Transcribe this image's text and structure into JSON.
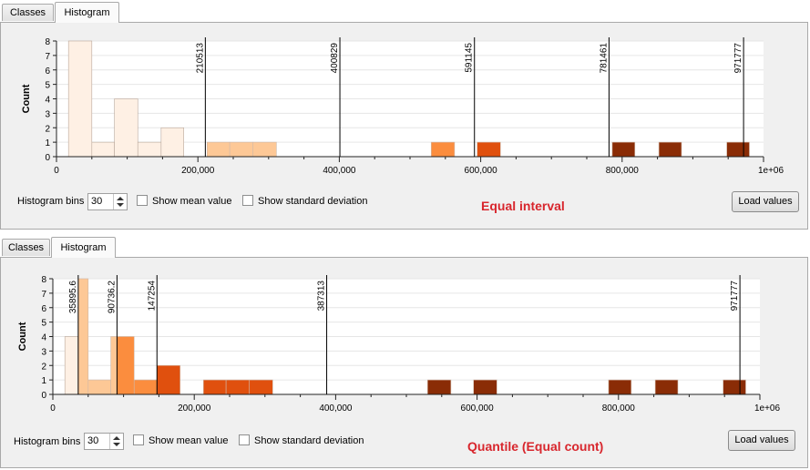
{
  "tabs": {
    "classes": "Classes",
    "histogram": "Histogram"
  },
  "controls": {
    "bins_label": "Histogram bins",
    "bins_value": "30",
    "show_mean": "Show mean value",
    "show_std": "Show standard deviation",
    "load_values": "Load values"
  },
  "colors": {
    "class1": "#fef0e4",
    "class2": "#fdc896",
    "class3": "#fb8d3e",
    "class4": "#e0500e",
    "class5": "#8a2c06"
  },
  "chart_data": [
    {
      "type": "bar",
      "method_label": "Equal interval",
      "xlabel": "",
      "ylabel": "Count",
      "xlim": [
        0,
        1000000
      ],
      "ylim": [
        0,
        8
      ],
      "x_ticks": [
        "0",
        "200,000",
        "400,000",
        "600,000",
        "800,000",
        "1e+06"
      ],
      "y_ticks": [
        "0",
        "1",
        "2",
        "3",
        "4",
        "5",
        "6",
        "7",
        "8"
      ],
      "breaks": [
        "210513",
        "400829",
        "591145",
        "781461",
        "971777"
      ],
      "break_values": [
        210513,
        400829,
        591145,
        781461,
        971777
      ],
      "bins": [
        {
          "x0": 17000,
          "x1": 50000,
          "count": 8,
          "class": 1
        },
        {
          "x0": 50000,
          "x1": 82000,
          "count": 1,
          "class": 1
        },
        {
          "x0": 82000,
          "x1": 115000,
          "count": 4,
          "class": 1
        },
        {
          "x0": 115000,
          "x1": 148000,
          "count": 1,
          "class": 1
        },
        {
          "x0": 148000,
          "x1": 180000,
          "count": 2,
          "class": 1
        },
        {
          "x0": 213000,
          "x1": 245000,
          "count": 1,
          "class": 2
        },
        {
          "x0": 245000,
          "x1": 278000,
          "count": 1,
          "class": 2
        },
        {
          "x0": 278000,
          "x1": 311000,
          "count": 1,
          "class": 2
        },
        {
          "x0": 530000,
          "x1": 563000,
          "count": 1,
          "class": 3
        },
        {
          "x0": 595000,
          "x1": 628000,
          "count": 1,
          "class": 4
        },
        {
          "x0": 786000,
          "x1": 818000,
          "count": 1,
          "class": 5
        },
        {
          "x0": 852000,
          "x1": 884000,
          "count": 1,
          "class": 5
        },
        {
          "x0": 948000,
          "x1": 980000,
          "count": 1,
          "class": 5
        }
      ]
    },
    {
      "type": "bar",
      "method_label": "Quantile (Equal count)",
      "xlabel": "",
      "ylabel": "Count",
      "xlim": [
        0,
        1000000
      ],
      "ylim": [
        0,
        8
      ],
      "x_ticks": [
        "0",
        "200,000",
        "400,000",
        "600,000",
        "800,000",
        "1e+06"
      ],
      "y_ticks": [
        "0",
        "1",
        "2",
        "3",
        "4",
        "5",
        "6",
        "7",
        "8"
      ],
      "breaks": [
        "35895.6",
        "90736.2",
        "147254",
        "387313",
        "971777"
      ],
      "break_values": [
        35895.6,
        90736.2,
        147254,
        387313,
        971777
      ],
      "bins": [
        {
          "x0": 17000,
          "x1": 35900,
          "count": 4,
          "class": 1
        },
        {
          "x0": 35900,
          "x1": 50000,
          "count": 8,
          "class": 2
        },
        {
          "x0": 50000,
          "x1": 82000,
          "count": 1,
          "class": 2
        },
        {
          "x0": 82000,
          "x1": 90700,
          "count": 4,
          "class": 2
        },
        {
          "x0": 90700,
          "x1": 115000,
          "count": 4,
          "class": 3
        },
        {
          "x0": 115000,
          "x1": 147300,
          "count": 1,
          "class": 3
        },
        {
          "x0": 147300,
          "x1": 180000,
          "count": 2,
          "class": 4
        },
        {
          "x0": 213000,
          "x1": 245000,
          "count": 1,
          "class": 4
        },
        {
          "x0": 245000,
          "x1": 278000,
          "count": 1,
          "class": 4
        },
        {
          "x0": 278000,
          "x1": 311000,
          "count": 1,
          "class": 4
        },
        {
          "x0": 530000,
          "x1": 563000,
          "count": 1,
          "class": 5
        },
        {
          "x0": 595000,
          "x1": 628000,
          "count": 1,
          "class": 5
        },
        {
          "x0": 786000,
          "x1": 818000,
          "count": 1,
          "class": 5
        },
        {
          "x0": 852000,
          "x1": 884000,
          "count": 1,
          "class": 5
        },
        {
          "x0": 948000,
          "x1": 980000,
          "count": 1,
          "class": 5
        }
      ]
    }
  ]
}
